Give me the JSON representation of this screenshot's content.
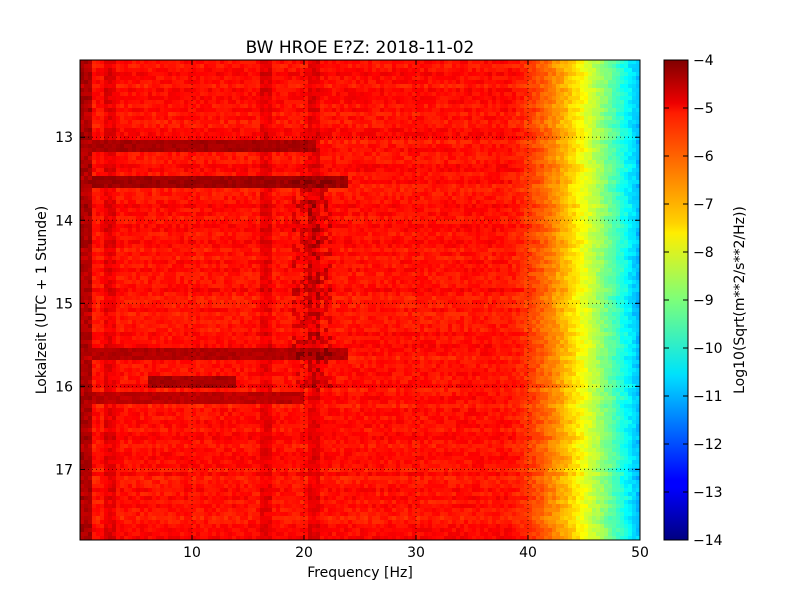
{
  "chart_data": {
    "type": "heatmap",
    "title": "BW HROE E?Z: 2018-11-02",
    "xlabel": "Frequency [Hz]",
    "ylabel": "Lokalzeit (UTC + 1 Stunde)",
    "xlim": [
      0,
      50
    ],
    "ylim": [
      17.85,
      12.07
    ],
    "x_ticks": [
      10,
      20,
      30,
      40,
      50
    ],
    "y_ticks": [
      13,
      14,
      15,
      16,
      17
    ],
    "grid": true,
    "colorbar": {
      "label": "Log10(Sqrt(m**2/s**2/Hz))",
      "range": [
        -14,
        -4
      ],
      "ticks": [
        -4,
        -5,
        -6,
        -7,
        -8,
        -9,
        -10,
        -11,
        -12,
        -13,
        -14
      ],
      "colormap": "jet"
    },
    "features": {
      "baseline_level": -5.4,
      "rolloff_start_hz": 38,
      "rolloff_end_hz": 50,
      "level_at_50hz": -11,
      "strong_bands": [
        {
          "time": 13.1,
          "from_hz": 1,
          "to_hz": 21,
          "level": -4.4
        },
        {
          "time": 13.55,
          "from_hz": 1,
          "to_hz": 24,
          "level": -4.3
        },
        {
          "time": 15.6,
          "from_hz": 1,
          "to_hz": 24,
          "level": -4.5
        },
        {
          "time": 15.95,
          "from_hz": 6,
          "to_hz": 14,
          "level": -4.4
        },
        {
          "time": 16.15,
          "from_hz": 1,
          "to_hz": 20,
          "level": -4.6
        }
      ],
      "vertical_lines_hz": [
        0.5,
        2.7,
        16.7,
        20.8
      ]
    }
  }
}
